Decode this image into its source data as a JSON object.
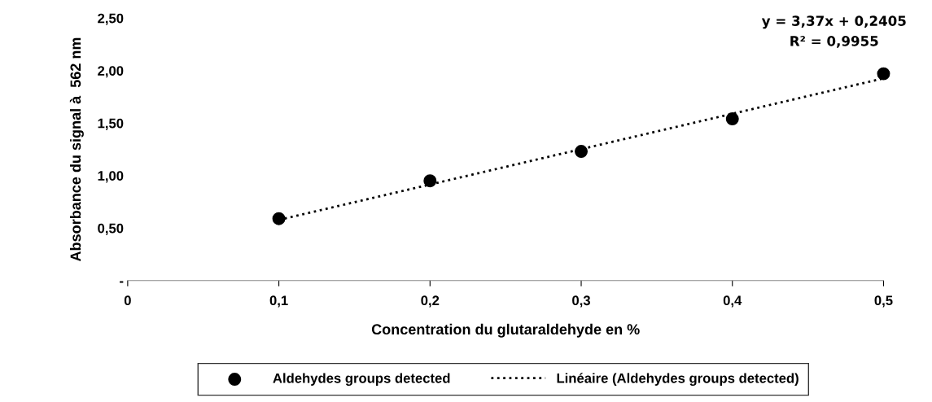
{
  "chart_data": {
    "type": "scatter",
    "xlabel": "Concentration du glutaraldehyde en %",
    "ylabel": "Absorbance du signal à  562 nm",
    "xlim": [
      0,
      0.5
    ],
    "ylim": [
      0,
      2.5
    ],
    "xticks": [
      {
        "value": 0,
        "label": "0"
      },
      {
        "value": 0.1,
        "label": "0,1"
      },
      {
        "value": 0.2,
        "label": "0,2"
      },
      {
        "value": 0.3,
        "label": "0,3"
      },
      {
        "value": 0.4,
        "label": "0,4"
      },
      {
        "value": 0.5,
        "label": "0,5"
      }
    ],
    "yticks": [
      {
        "value": 0,
        "label": "-"
      },
      {
        "value": 0.5,
        "label": "0,50"
      },
      {
        "value": 1.0,
        "label": "1,00"
      },
      {
        "value": 1.5,
        "label": "1,50"
      },
      {
        "value": 2.0,
        "label": "2,00"
      },
      {
        "value": 2.5,
        "label": "2,50"
      }
    ],
    "series": [
      {
        "name": "Aldehydes groups detected",
        "color": "#000000",
        "marker": "circle",
        "x": [
          0.1,
          0.2,
          0.3,
          0.4,
          0.5
        ],
        "values": [
          0.59,
          0.95,
          1.23,
          1.54,
          1.97
        ]
      },
      {
        "name": "Linéaire (Aldehydes groups detected)",
        "type": "line",
        "color": "#000000",
        "marker": "none",
        "line_style": "dotted",
        "x": [
          0.1,
          0.5
        ],
        "values": [
          0.578,
          1.926
        ]
      }
    ],
    "annotations": [
      "y = 3,37x + 0,2405",
      "R² = 0,9955"
    ],
    "grid": false,
    "legend": "bottom"
  }
}
